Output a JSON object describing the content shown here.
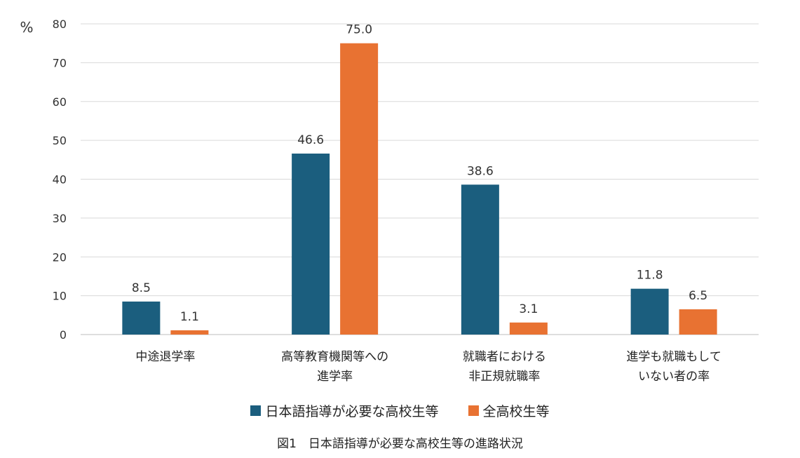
{
  "chart_data": {
    "type": "bar",
    "ylabel": "%",
    "ylim": [
      0,
      80
    ],
    "yticks": [
      0,
      10,
      20,
      30,
      40,
      50,
      60,
      70,
      80
    ],
    "grid": true,
    "legend_position": "bottom",
    "categories": [
      [
        "中途退学率"
      ],
      [
        "高等教育機関等への",
        "進学率"
      ],
      [
        "就職者における",
        "非正規就職率"
      ],
      [
        "進学も就職もして",
        "いない者の率"
      ]
    ],
    "series": [
      {
        "name": "日本語指導が必要な高校生等",
        "color": "#1b5e7e",
        "values": [
          8.5,
          46.6,
          38.6,
          11.8
        ],
        "labels": [
          "8.5",
          "46.6",
          "38.6",
          "11.8"
        ]
      },
      {
        "name": "全高校生等",
        "color": "#e87232",
        "values": [
          1.1,
          75.0,
          3.1,
          6.5
        ],
        "labels": [
          "1.1",
          "75.0",
          "3.1",
          "6.5"
        ]
      }
    ]
  },
  "legend": {
    "items": [
      {
        "label": "日本語指導が必要な高校生等",
        "color": "#1b5e7e"
      },
      {
        "label": "全高校生等",
        "color": "#e87232"
      }
    ]
  },
  "caption": "図1　日本語指導が必要な高校生等の進路状況"
}
